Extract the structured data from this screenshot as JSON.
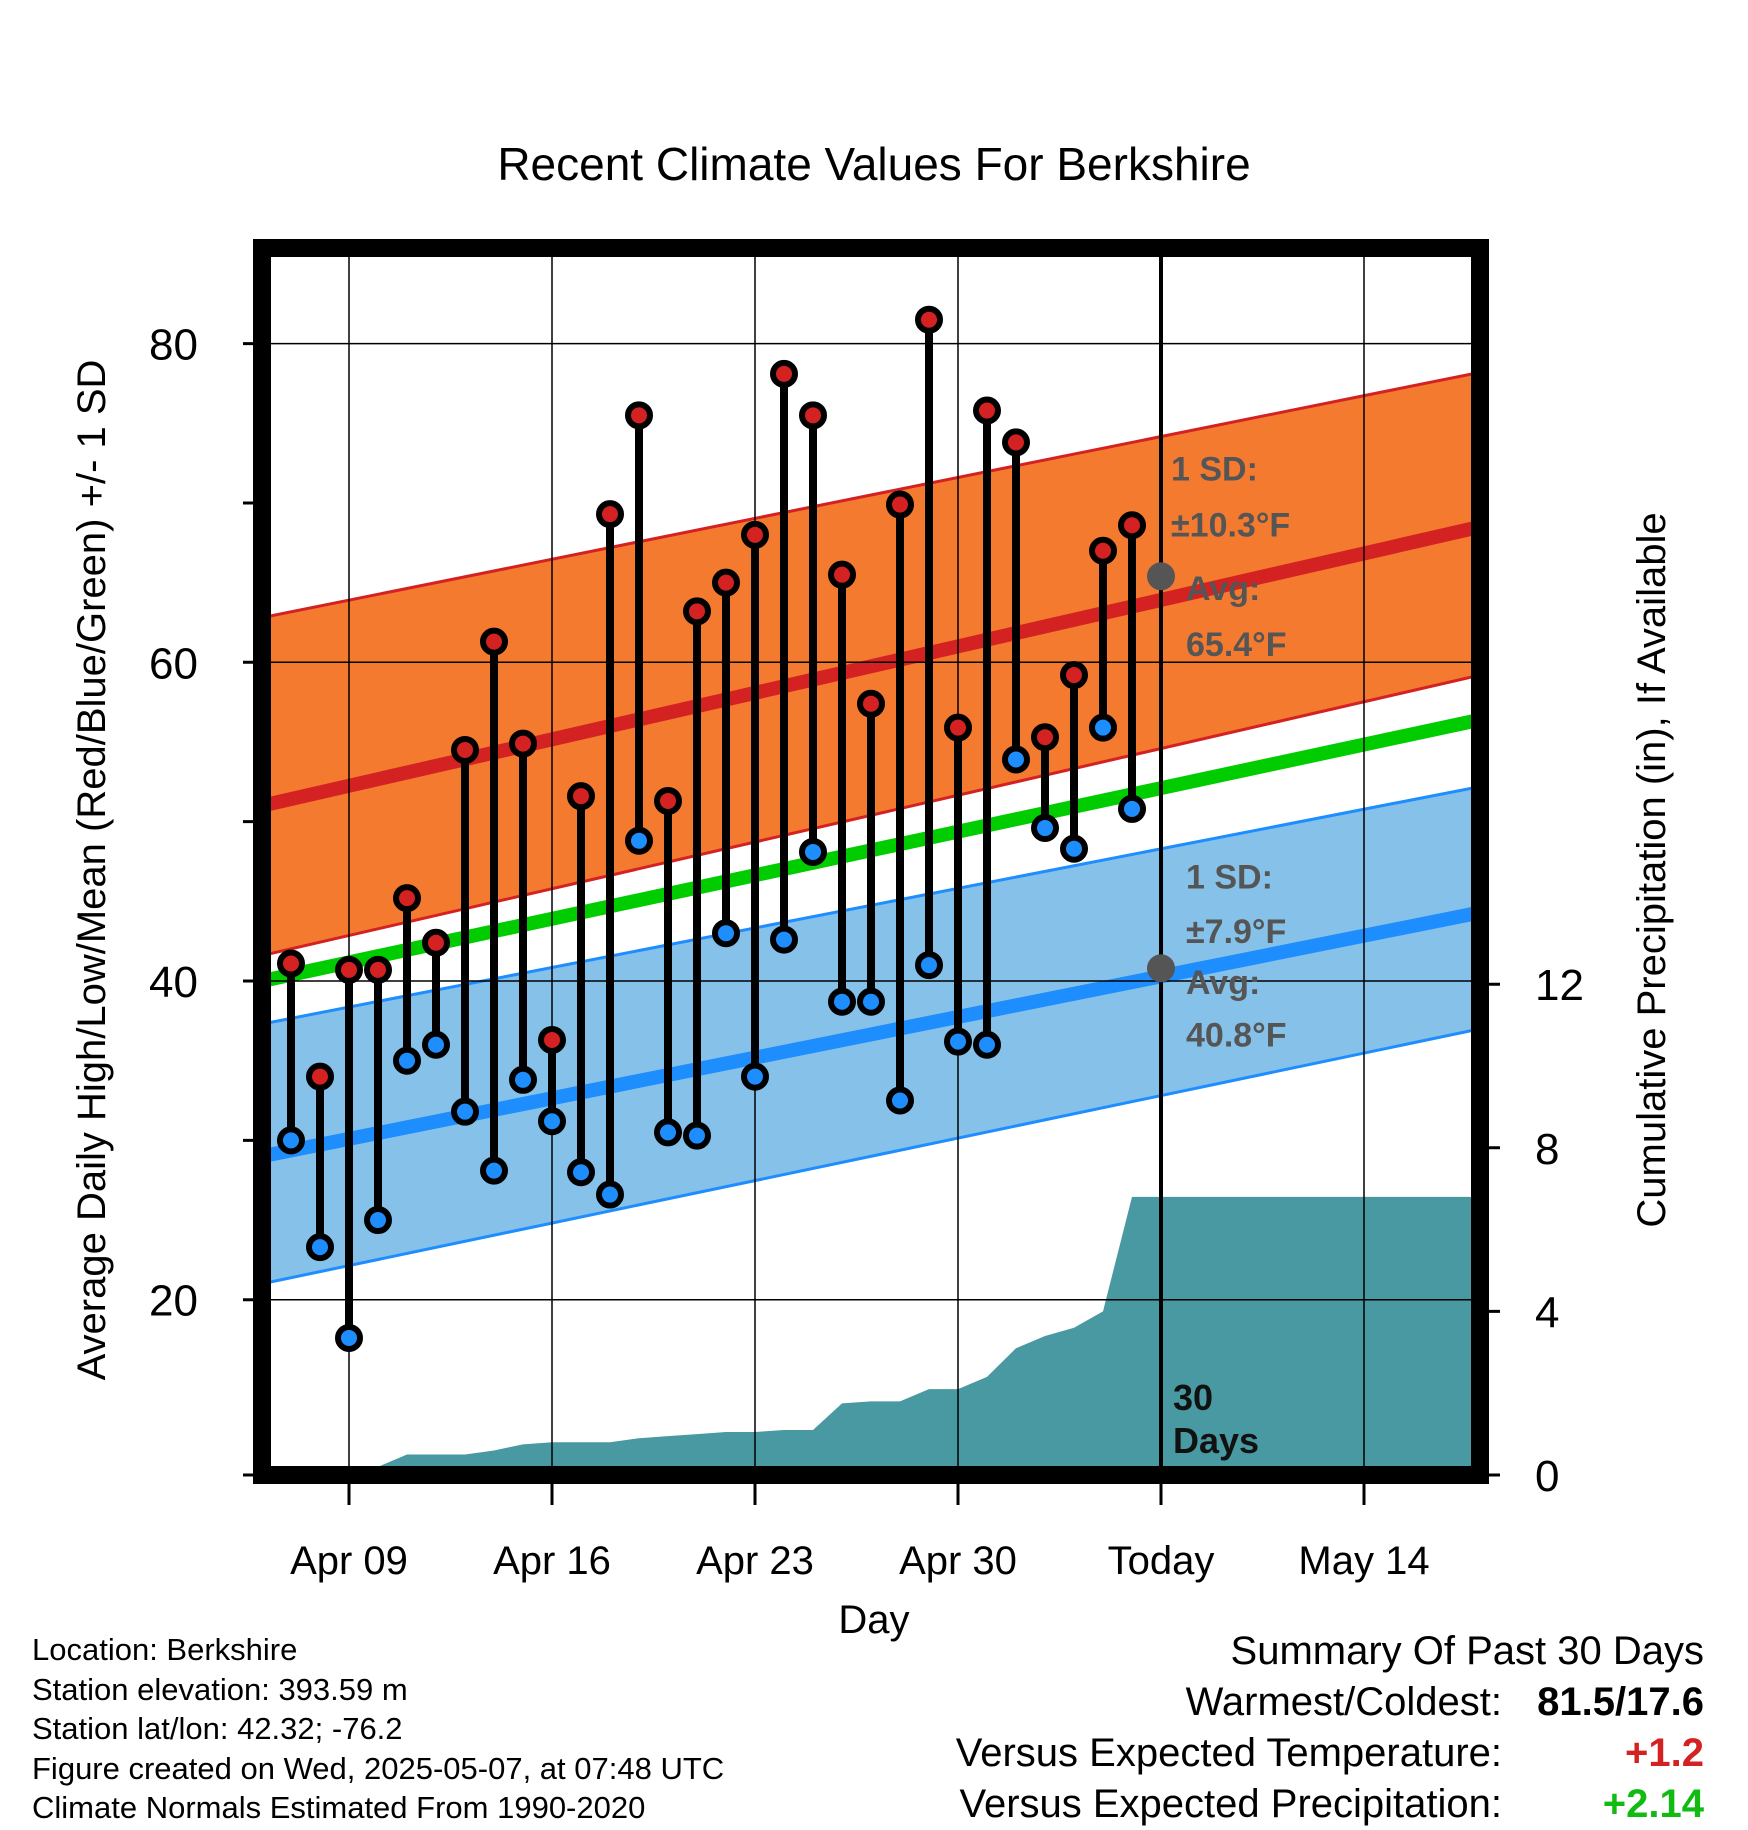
{
  "chart_data": {
    "type": "line",
    "title": "Recent Climate Values For Berkshire",
    "xlabel": "Day",
    "ylabel": "Average Daily High/Low/Mean (Red/Blue/Green) +/- 1 SD",
    "y2label": "Cumulative Precipitation (in), If Available",
    "ylim": [
      9,
      86
    ],
    "y2lim": [
      0,
      30
    ],
    "y_ticks": [
      20,
      40,
      60,
      80
    ],
    "y_minor_ticks": [
      30,
      50,
      70
    ],
    "y2_ticks": [
      0,
      4,
      8,
      12
    ],
    "x_tick_labels": [
      "Apr 09",
      "Apr 16",
      "Apr 23",
      "Apr 30",
      "Today",
      "May 14"
    ],
    "x_range_days": [
      "2025-04-06",
      "2025-05-18"
    ],
    "today": "2025-05-07",
    "colors": {
      "high_band": "#f47a30",
      "high_line": "#d42121",
      "low_band": "#85c1e8",
      "low_line": "#1e8eff",
      "mean_line": "#00cc00",
      "precip": "#4899a1",
      "high_marker": "#d42121",
      "low_marker": "#1e8eff",
      "stem": "#000000",
      "annotation": "#555555"
    },
    "normals": {
      "dates": [
        "2025-04-06",
        "2025-05-18"
      ],
      "high_avg": [
        51.0,
        68.5
      ],
      "high_upper": [
        62.8,
        78.2
      ],
      "high_lower": [
        41.6,
        59.2
      ],
      "low_avg": [
        29.0,
        44.3
      ],
      "low_upper": [
        37.3,
        52.2
      ],
      "low_lower": [
        21.0,
        37.0
      ],
      "mean": [
        40.0,
        56.4
      ]
    },
    "series": [
      {
        "name": "High",
        "x": [
          "2025-04-07",
          "2025-04-08",
          "2025-04-09",
          "2025-04-10",
          "2025-04-11",
          "2025-04-12",
          "2025-04-13",
          "2025-04-14",
          "2025-04-15",
          "2025-04-16",
          "2025-04-17",
          "2025-04-18",
          "2025-04-19",
          "2025-04-20",
          "2025-04-21",
          "2025-04-22",
          "2025-04-23",
          "2025-04-24",
          "2025-04-25",
          "2025-04-26",
          "2025-04-27",
          "2025-04-28",
          "2025-04-29",
          "2025-04-30",
          "2025-05-01",
          "2025-05-02",
          "2025-05-03",
          "2025-05-04",
          "2025-05-05",
          "2025-05-06"
        ],
        "values": [
          41.1,
          34.0,
          40.7,
          40.7,
          45.2,
          42.4,
          54.5,
          61.3,
          54.9,
          36.3,
          51.6,
          69.3,
          75.5,
          51.3,
          63.2,
          65.0,
          68.0,
          78.1,
          75.5,
          65.5,
          57.4,
          69.9,
          81.5,
          55.9,
          75.8,
          73.8,
          55.3,
          59.2,
          67.0,
          68.6
        ]
      },
      {
        "name": "Low",
        "x": [
          "2025-04-07",
          "2025-04-08",
          "2025-04-09",
          "2025-04-10",
          "2025-04-11",
          "2025-04-12",
          "2025-04-13",
          "2025-04-14",
          "2025-04-15",
          "2025-04-16",
          "2025-04-17",
          "2025-04-18",
          "2025-04-19",
          "2025-04-20",
          "2025-04-21",
          "2025-04-22",
          "2025-04-23",
          "2025-04-24",
          "2025-04-25",
          "2025-04-26",
          "2025-04-27",
          "2025-04-28",
          "2025-04-29",
          "2025-04-30",
          "2025-05-01",
          "2025-05-02",
          "2025-05-03",
          "2025-05-04",
          "2025-05-05",
          "2025-05-06"
        ],
        "values": [
          30.0,
          23.3,
          17.6,
          25.0,
          35.0,
          36.0,
          31.8,
          28.1,
          33.8,
          31.2,
          28.0,
          26.6,
          48.8,
          30.5,
          30.3,
          43.0,
          34.0,
          42.6,
          48.1,
          38.7,
          38.7,
          32.5,
          41.0,
          36.2,
          36.0,
          53.9,
          49.6,
          48.3,
          55.9,
          50.8
        ]
      }
    ],
    "precip": {
      "name": "Cumulative Precipitation",
      "x": [
        "2025-04-06",
        "2025-04-09",
        "2025-04-10",
        "2025-04-11",
        "2025-04-12",
        "2025-04-13",
        "2025-04-14",
        "2025-04-15",
        "2025-04-16",
        "2025-04-17",
        "2025-04-18",
        "2025-04-19",
        "2025-04-20",
        "2025-04-21",
        "2025-04-22",
        "2025-04-23",
        "2025-04-24",
        "2025-04-25",
        "2025-04-26",
        "2025-04-27",
        "2025-04-28",
        "2025-04-29",
        "2025-04-30",
        "2025-05-01",
        "2025-05-02",
        "2025-05-03",
        "2025-05-04",
        "2025-05-05",
        "2025-05-06",
        "2025-05-07",
        "2025-05-18"
      ],
      "values": [
        0.0,
        0.0,
        0.2,
        0.5,
        0.5,
        0.5,
        0.6,
        0.75,
        0.8,
        0.8,
        0.8,
        0.9,
        0.95,
        1.0,
        1.05,
        1.05,
        1.1,
        1.1,
        1.75,
        1.8,
        1.8,
        2.1,
        2.1,
        2.4,
        3.1,
        3.4,
        3.6,
        4.0,
        6.8,
        6.8,
        6.8
      ]
    },
    "annotations": {
      "high_sd_label": "1 SD:",
      "high_sd_value": "±10.3°F",
      "high_avg_label": "Avg:",
      "high_avg_value": "65.4°F",
      "high_avg_point": 65.4,
      "low_sd_label": "1 SD:",
      "low_sd_value": "±7.9°F",
      "low_avg_label": "Avg:",
      "low_avg_value": "40.8°F",
      "low_avg_point": 40.8,
      "period_count": "30",
      "period_unit": "Days"
    },
    "grid": true,
    "legend": "none"
  },
  "footer": {
    "location": "Location: Berkshire",
    "elevation": "Station elevation: 393.59 m",
    "latlon": "Station lat/lon: 42.32; -76.2",
    "created": "Figure created on Wed, 2025-05-07, at 07:48 UTC",
    "normals": "Climate Normals Estimated From 1990-2020"
  },
  "summary": {
    "heading": "Summary Of Past 30 Days",
    "warm_cold_label": "Warmest/Coldest:",
    "warm_cold_value": "81.5/17.6",
    "temp_label": "Versus Expected Temperature:",
    "temp_value": "+1.2",
    "temp_color": "#d42121",
    "precip_label": "Versus Expected Precipitation:",
    "precip_value": "+2.14",
    "precip_color": "#11bb11"
  }
}
